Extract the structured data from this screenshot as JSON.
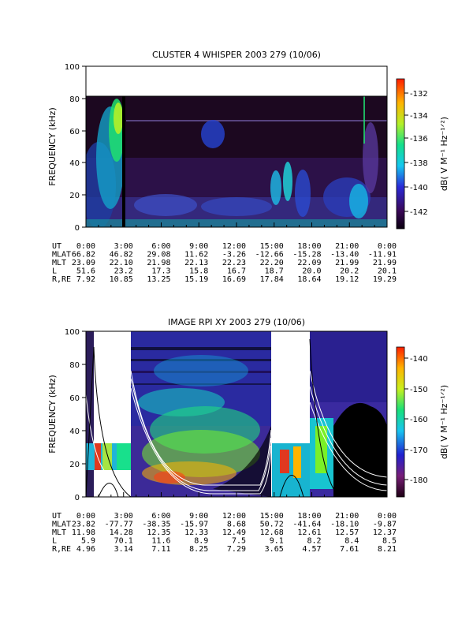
{
  "chart_data": [
    {
      "type": "heatmap",
      "title": "CLUSTER 4 WHISPER 2003 279 (10/06)",
      "ylabel": "FREQUENCY (kHz)",
      "ylim": [
        0,
        100
      ],
      "yticks": [
        "0",
        "20",
        "40",
        "60",
        "80",
        "100"
      ],
      "colorbar": {
        "label": "dB( V M⁻¹ Hz⁻¹ᐟ²)",
        "ticks": [
          "-132",
          "-134",
          "-136",
          "-138",
          "-140",
          "-142"
        ],
        "range": [
          -143,
          -131
        ]
      },
      "data_fmax_khz": 80,
      "ephemeris": {
        "labels": [
          "UT",
          "MLAT",
          "MLT",
          "L",
          "R,RE"
        ],
        "ut": [
          "0:00",
          "3:00",
          "6:00",
          "9:00",
          "12:00",
          "15:00",
          "18:00",
          "21:00",
          "0:00"
        ],
        "mlat": [
          "66.82",
          "46.82",
          "29.08",
          "11.62",
          "-3.26",
          "-12.66",
          "-15.28",
          "-13.40",
          "-11.91"
        ],
        "mlt": [
          "23.09",
          "22.10",
          "21.98",
          "22.13",
          "22.23",
          "22.20",
          "22.09",
          "21.99",
          "21.99"
        ],
        "l": [
          "51.6",
          "23.2",
          "17.3",
          "15.8",
          "16.7",
          "18.7",
          "20.0",
          "20.2",
          "20.1"
        ],
        "r_re": [
          "7.92",
          "10.85",
          "13.25",
          "15.19",
          "16.69",
          "17.84",
          "18.64",
          "19.12",
          "19.29"
        ]
      }
    },
    {
      "type": "heatmap",
      "title": "IMAGE RPI XY 2003 279 (10/06)",
      "ylabel": "FREQUENCY (kHz)",
      "ylim": [
        0,
        100
      ],
      "yticks": [
        "0",
        "20",
        "40",
        "60",
        "80",
        "100"
      ],
      "colorbar": {
        "label": "dB( V M⁻¹ Hz⁻¹ᐟ²)",
        "ticks": [
          "-140",
          "-150",
          "-160",
          "-170",
          "-180"
        ],
        "range": [
          -185,
          -135
        ]
      },
      "ephemeris": {
        "labels": [
          "UT",
          "MLAT",
          "MLT",
          "L",
          "R,RE"
        ],
        "ut": [
          "0:00",
          "3:00",
          "6:00",
          "9:00",
          "12:00",
          "15:00",
          "18:00",
          "21:00",
          "0:00"
        ],
        "mlat": [
          "23.82",
          "-77.77",
          "-38.35",
          "-15.97",
          "8.68",
          "50.72",
          "-41.64",
          "-18.10",
          "-9.87"
        ],
        "mlt": [
          "11.98",
          "14.28",
          "12.35",
          "12.33",
          "12.49",
          "12.68",
          "12.61",
          "12.57",
          "12.37"
        ],
        "l": [
          "5.9",
          "70.1",
          "11.6",
          "8.9",
          "7.5",
          "9.1",
          "8.2",
          "8.4",
          "8.5"
        ],
        "r_re": [
          "4.96",
          "3.14",
          "7.11",
          "8.25",
          "7.29",
          "3.65",
          "4.57",
          "7.61",
          "8.21"
        ]
      }
    }
  ]
}
